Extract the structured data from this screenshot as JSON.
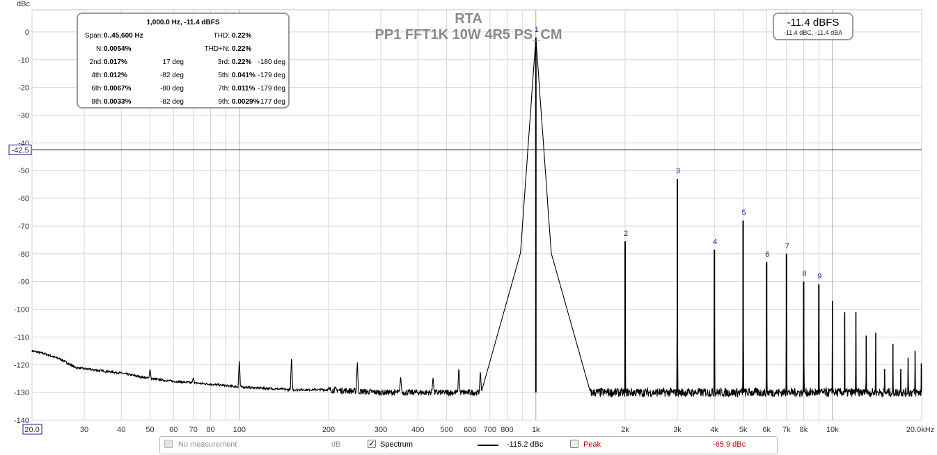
{
  "chart_data": {
    "type": "line",
    "title": "RTA",
    "subtitle": "PP1 FFT1K 10W 4R5 PS_CM",
    "ylabel": "dBc",
    "xlabel": "",
    "x_unit_label": "20.0kHz",
    "xscale": "log",
    "xlim": [
      20,
      20000
    ],
    "ylim": [
      -140,
      8
    ],
    "grid": true,
    "y_ticks": [
      0,
      -10,
      -20,
      -30,
      -40,
      -50,
      -60,
      -70,
      -80,
      -90,
      -100,
      -110,
      -120,
      -130,
      -140
    ],
    "y_tick_labels": [
      "0",
      "-10",
      "-20",
      "-30",
      "-40",
      "-50",
      "-60",
      "-70",
      "-80",
      "-90",
      "-100",
      "-110",
      "-120",
      "-130",
      "-140"
    ],
    "x_ticks": [
      {
        "v": 20,
        "label": "20.0"
      },
      {
        "v": 30,
        "label": "30"
      },
      {
        "v": 40,
        "label": "40"
      },
      {
        "v": 50,
        "label": "50"
      },
      {
        "v": 60,
        "label": "60"
      },
      {
        "v": 70,
        "label": "70"
      },
      {
        "v": 80,
        "label": "80"
      },
      {
        "v": 90,
        "label": ""
      },
      {
        "v": 100,
        "label": "100"
      },
      {
        "v": 200,
        "label": "200"
      },
      {
        "v": 300,
        "label": "300"
      },
      {
        "v": 400,
        "label": "400"
      },
      {
        "v": 500,
        "label": "500"
      },
      {
        "v": 600,
        "label": "600"
      },
      {
        "v": 700,
        "label": "700"
      },
      {
        "v": 800,
        "label": "800"
      },
      {
        "v": 900,
        "label": ""
      },
      {
        "v": 1000,
        "label": "1k"
      },
      {
        "v": 2000,
        "label": "2k"
      },
      {
        "v": 3000,
        "label": "3k"
      },
      {
        "v": 4000,
        "label": "4k"
      },
      {
        "v": 5000,
        "label": "5k"
      },
      {
        "v": 6000,
        "label": "6k"
      },
      {
        "v": 7000,
        "label": "7k"
      },
      {
        "v": 8000,
        "label": "8k"
      },
      {
        "v": 9000,
        "label": ""
      },
      {
        "v": 10000,
        "label": "10k"
      },
      {
        "v": 20000,
        "label": ""
      }
    ],
    "cursor_level": -42.5,
    "cursor_label": "-42.5",
    "series": [
      {
        "name": "Spectrum",
        "color": "#000000",
        "noise_floor": [
          [
            20,
            -115
          ],
          [
            22,
            -116
          ],
          [
            25,
            -118
          ],
          [
            28,
            -121
          ],
          [
            33,
            -122
          ],
          [
            40,
            -123
          ],
          [
            50,
            -125
          ],
          [
            60,
            -126
          ],
          [
            80,
            -127
          ],
          [
            100,
            -128
          ],
          [
            150,
            -129
          ],
          [
            200,
            -129
          ],
          [
            300,
            -130
          ],
          [
            500,
            -130
          ],
          [
            700,
            -130
          ],
          [
            20000,
            -130
          ]
        ],
        "spurs": [
          [
            50,
            -121.5
          ],
          [
            70,
            -124.5
          ],
          [
            100,
            -118
          ],
          [
            150,
            -116.5
          ],
          [
            250,
            -118
          ],
          [
            350,
            -124
          ],
          [
            450,
            -124.5
          ],
          [
            550,
            -120.5
          ],
          [
            650,
            -122
          ],
          [
            1250,
            -122.5
          ]
        ],
        "peaks": [
          {
            "h": "1",
            "f": 1000,
            "db": -2
          },
          {
            "h": "2",
            "f": 2000,
            "db": -75.5
          },
          {
            "h": "3",
            "f": 3000,
            "db": -53
          },
          {
            "h": "4",
            "f": 4000,
            "db": -78.5
          },
          {
            "h": "5",
            "f": 5000,
            "db": -68
          },
          {
            "h": "6",
            "f": 6000,
            "db": -83
          },
          {
            "h": "7",
            "f": 7000,
            "db": -80
          },
          {
            "h": "8",
            "f": 8000,
            "db": -90
          },
          {
            "h": "9",
            "f": 9000,
            "db": -91
          }
        ],
        "upper_harmonics": [
          [
            10000,
            -97
          ],
          [
            11000,
            -101
          ],
          [
            12000,
            -101
          ],
          [
            13000,
            -109.5
          ],
          [
            14000,
            -108.5
          ],
          [
            15000,
            -121.5
          ],
          [
            16000,
            -112.5
          ],
          [
            17000,
            -121.5
          ],
          [
            18000,
            -117.5
          ],
          [
            19000,
            -115
          ],
          [
            19950,
            -119.5
          ]
        ]
      }
    ]
  },
  "stats": {
    "header": "1,000.0 Hz, -11.4 dBFS",
    "span_label": "Span:",
    "span_value": "0..45,600 Hz",
    "thd_label": "THD:",
    "thd_value": "0.22%",
    "n_label": "N:",
    "n_value": "0.0054%",
    "thdn_label": "THD+N:",
    "thdn_value": "0.22%",
    "rows": [
      {
        "l1": "2nd:",
        "v1": "0.017%",
        "p1": "17 deg",
        "l2": "3rd:",
        "v2": "0.22%",
        "p2": "-180 deg"
      },
      {
        "l1": "4th:",
        "v1": "0.012%",
        "p1": "-82 deg",
        "l2": "5th:",
        "v2": "0.041%",
        "p2": "-179 deg"
      },
      {
        "l1": "6th:",
        "v1": "0.0067%",
        "p1": "-80 deg",
        "l2": "7th:",
        "v2": "0.011%",
        "p2": "-179 deg"
      },
      {
        "l1": "8th:",
        "v1": "0.0033%",
        "p1": "-82 deg",
        "l2": "9th:",
        "v2": "0.0029%",
        "p2": "-177 deg"
      }
    ]
  },
  "level": {
    "main": "-11.4 dBFS",
    "sub": "-11.4 dBC, -11.4 dBA"
  },
  "legend": {
    "no_measurement": "No measurement",
    "db": "dB",
    "spectrum": "Spectrum",
    "spectrum_value": "-115.2 dBc",
    "peak": "Peak",
    "peak_value": "-65.9 dBc",
    "peak_color": "#b00000"
  }
}
